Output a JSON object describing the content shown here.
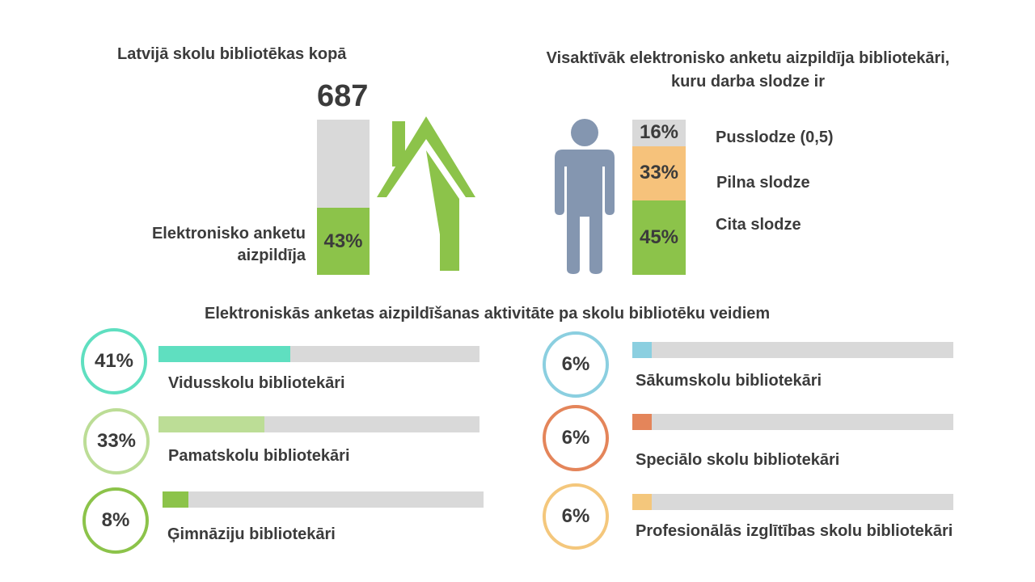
{
  "chart_data": [
    {
      "type": "bar",
      "title": "Latvijā skolu bibliotēkas kopā",
      "total": 687,
      "label": "Elektronisko anketu aizpildīja",
      "label_lines": [
        "Elektronisko anketu",
        "aizpildīja"
      ],
      "value_pct": 43,
      "value_text": "43%",
      "colors": {
        "fill": "#8cc34a",
        "remainder": "#d9d9d9",
        "house": "#8cc34a"
      }
    },
    {
      "type": "bar",
      "title_lines": [
        "Visaktīvāk elektronisko anketu aizpildīja bibliotekāri,",
        "kuru darba slodze ir"
      ],
      "segments": [
        {
          "name": "Pusslodze (0,5)",
          "value": 16,
          "text": "16%",
          "color": "#d9d9d9"
        },
        {
          "name": "Pilna slodze",
          "value": 33,
          "text": "33%",
          "color": "#f6c27b"
        },
        {
          "name": "Cita slodze",
          "value": 45,
          "text": "45%",
          "color": "#8cc34a"
        }
      ],
      "person_color": "#8496b0"
    },
    {
      "type": "bar",
      "title": "Elektroniskās anketas aizpildīšanas aktivitāte pa skolu bibliotēku veidiem",
      "items": [
        {
          "name": "Vidusskolu bibliotekāri",
          "value": 41,
          "text": "41%",
          "color": "#5fdfc0"
        },
        {
          "name": "Pamatskolu bibliotekāri",
          "value": 33,
          "text": "33%",
          "color": "#bcdd96"
        },
        {
          "name": "Ģimnāziju bibliotekāri",
          "value": 8,
          "text": "8%",
          "color": "#8cc34a"
        },
        {
          "name": "Sākumskolu bibliotekāri",
          "value": 6,
          "text": "6%",
          "color": "#8bcfe0"
        },
        {
          "name": "Speciālo skolu bibliotekāri",
          "value": 6,
          "text": "6%",
          "color": "#e4855a"
        },
        {
          "name": "Profesionālās izglītības skolu bibliotekāri",
          "value": 6,
          "text": "6%",
          "color": "#f4c77c"
        }
      ],
      "track_color": "#d9d9d9"
    }
  ]
}
